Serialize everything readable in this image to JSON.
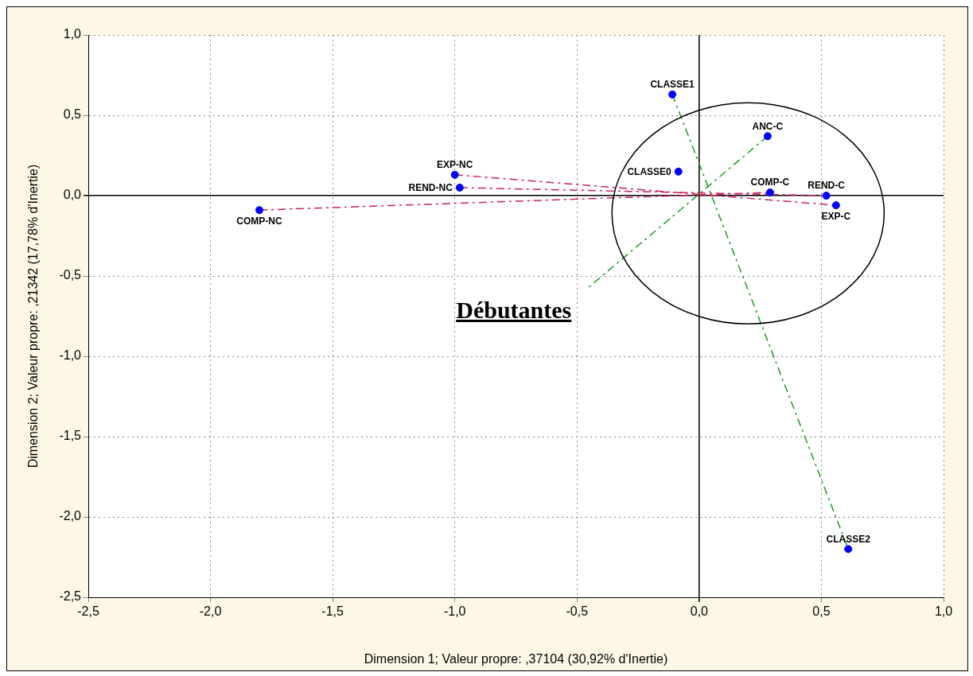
{
  "chart_data": {
    "type": "scatter",
    "xlabel": "Dimension 1; Valeur propre: ,37104 (30,92% d'Inertie)",
    "ylabel": "Dimension 2; Valeur propre: ,21342 (17,78% d'Inertie)",
    "xlim": [
      -2.5,
      1.0
    ],
    "ylim": [
      -2.5,
      1.0
    ],
    "xticks": [
      {
        "value": -2.5,
        "label": "-2,5"
      },
      {
        "value": -2.0,
        "label": "-2,0"
      },
      {
        "value": -1.5,
        "label": "-1,5"
      },
      {
        "value": -1.0,
        "label": "-1,0"
      },
      {
        "value": -0.5,
        "label": "-0,5"
      },
      {
        "value": 0,
        "label": "0,0"
      },
      {
        "value": 0.5,
        "label": "0,5"
      },
      {
        "value": 1.0,
        "label": "1,0"
      }
    ],
    "yticks": [
      {
        "value": -2.5,
        "label": "-2,5"
      },
      {
        "value": -2.0,
        "label": "-2,0"
      },
      {
        "value": -1.5,
        "label": "-1,5"
      },
      {
        "value": -1.0,
        "label": "-1,0"
      },
      {
        "value": -0.5,
        "label": "-0,5"
      },
      {
        "value": 0,
        "label": "0,0"
      },
      {
        "value": 0.5,
        "label": "0,5"
      },
      {
        "value": 1.0,
        "label": "1,0"
      }
    ],
    "grid": true,
    "legend": false,
    "marker": "circle",
    "series": [
      {
        "color": "#0000ff",
        "x": [
          -1.8,
          -1.0,
          -0.98,
          -0.11,
          -0.085,
          0.28,
          0.29,
          0.52,
          0.56,
          0.61
        ],
        "values": [
          -0.09,
          0.13,
          0.05,
          0.63,
          0.15,
          0.37,
          0.02,
          0.0,
          -0.06,
          -2.2
        ]
      },
      {
        "type": "line",
        "color": "#cc2255",
        "line_style": "dashed",
        "marker": "none",
        "x": [
          -1.8,
          0.29
        ],
        "values": [
          -0.09,
          0.02
        ]
      },
      {
        "type": "line",
        "color": "#cc2255",
        "line_style": "dashed",
        "marker": "none",
        "x": [
          -1.0,
          0.56
        ],
        "values": [
          0.13,
          -0.06
        ]
      },
      {
        "type": "line",
        "color": "#cc2255",
        "line_style": "dashed",
        "marker": "none",
        "x": [
          -0.98,
          0.52
        ],
        "values": [
          0.05,
          0.0
        ]
      },
      {
        "type": "line",
        "color": "#229922",
        "line_style": "dashed",
        "marker": "none",
        "x": [
          -0.11,
          0.61
        ],
        "values": [
          0.63,
          -2.2
        ]
      },
      {
        "type": "line",
        "color": "#229922",
        "line_style": "dashed",
        "marker": "none",
        "x": [
          0.28,
          -0.46
        ],
        "values": [
          0.37,
          -0.58
        ]
      }
    ],
    "annotations": [
      {
        "text": "COMP-NC",
        "x": -1.8,
        "y": -0.09
      },
      {
        "text": "EXP-NC",
        "x": -1.0,
        "y": 0.13
      },
      {
        "text": "REND-NC",
        "x": -0.98,
        "y": 0.05
      },
      {
        "text": "CLASSE1",
        "x": -0.11,
        "y": 0.63
      },
      {
        "text": "CLASSE0",
        "x": -0.085,
        "y": 0.15
      },
      {
        "text": "ANC-C",
        "x": 0.28,
        "y": 0.37
      },
      {
        "text": "COMP-C",
        "x": 0.29,
        "y": 0.02
      },
      {
        "text": "REND-C",
        "x": 0.52,
        "y": 0.0
      },
      {
        "text": "EXP-C",
        "x": 0.56,
        "y": -0.06
      },
      {
        "text": "CLASSE2",
        "x": 0.61,
        "y": -2.2
      },
      "Débutantes"
    ]
  }
}
